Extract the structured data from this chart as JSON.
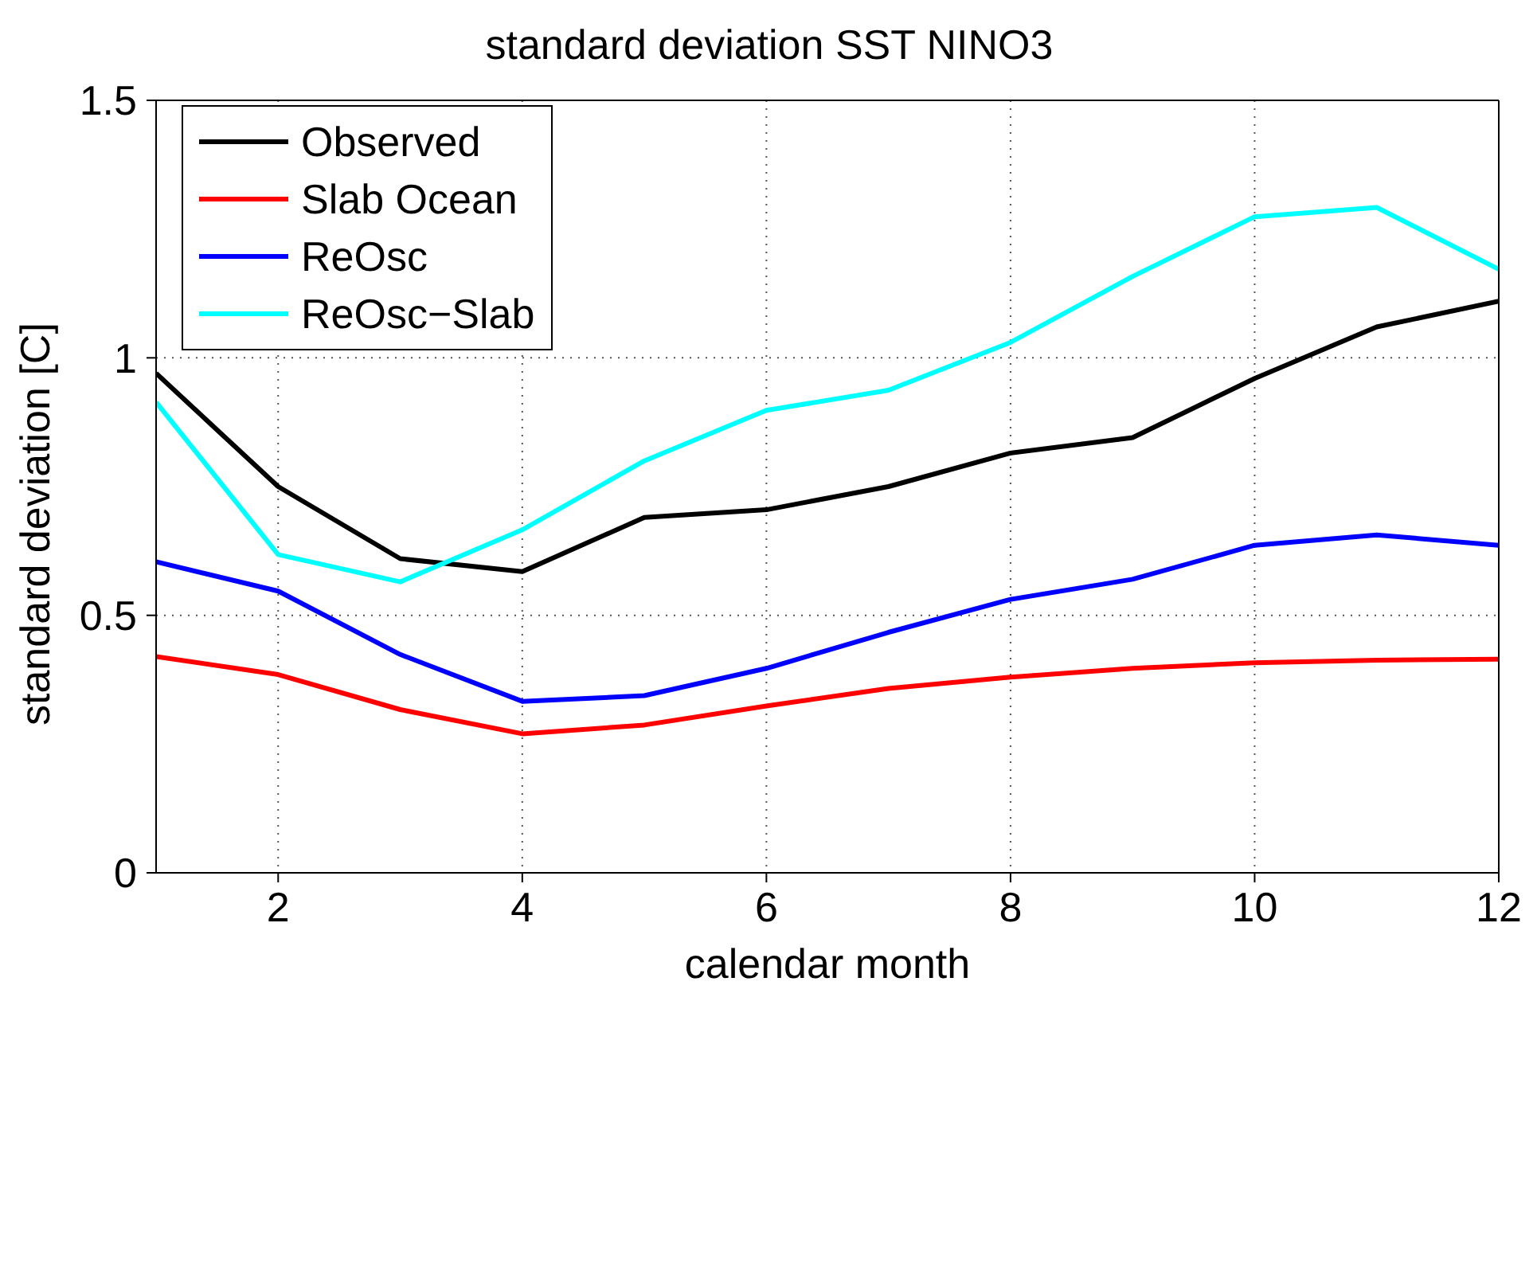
{
  "chart_data": {
    "type": "line",
    "title": "standard deviation SST NINO3",
    "xlabel": "calendar month",
    "ylabel": "standard deviation [C]",
    "x": [
      1,
      2,
      3,
      4,
      5,
      6,
      7,
      8,
      9,
      10,
      11,
      12
    ],
    "series": [
      {
        "name": "Observed",
        "color": "#000000",
        "values": [
          0.97,
          0.75,
          0.61,
          0.585,
          0.69,
          0.705,
          0.75,
          0.815,
          0.845,
          0.96,
          1.06,
          1.11
        ]
      },
      {
        "name": "Slab Ocean",
        "color": "#ff0000",
        "values": [
          0.42,
          0.385,
          0.317,
          0.27,
          0.287,
          0.324,
          0.358,
          0.38,
          0.397,
          0.408,
          0.413,
          0.415
        ]
      },
      {
        "name": "ReOsc",
        "color": "#0000ff",
        "values": [
          0.604,
          0.547,
          0.424,
          0.333,
          0.344,
          0.397,
          0.467,
          0.531,
          0.57,
          0.636,
          0.656,
          0.636
        ]
      },
      {
        "name": "ReOsc−Slab",
        "color": "#00ffff",
        "values": [
          0.914,
          0.618,
          0.565,
          0.666,
          0.8,
          0.898,
          0.937,
          1.03,
          1.158,
          1.274,
          1.292,
          1.172
        ]
      }
    ],
    "xlim": [
      1,
      12
    ],
    "xticks": [
      2,
      4,
      6,
      8,
      10,
      12
    ],
    "ylim": [
      0,
      1.5
    ],
    "yticks": [
      0,
      0.5,
      1,
      1.5
    ],
    "grid": true,
    "legend": "top left",
    "marker": "none",
    "line_style": "solid"
  }
}
